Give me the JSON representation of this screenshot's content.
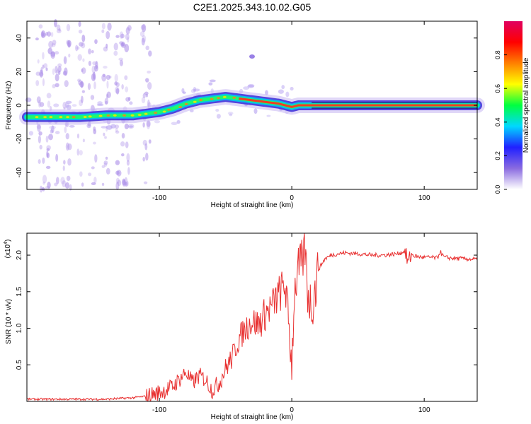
{
  "title": "C2E1.2025.343.10.02.G05",
  "chart_data": [
    {
      "type": "heatmap",
      "name": "spectrogram",
      "xlabel": "Height of straight line (km)",
      "ylabel": "Frequency (Hz)",
      "xlim": [
        -200,
        140
      ],
      "ylim": [
        -50,
        50
      ],
      "xticks": [
        -100,
        0,
        100
      ],
      "xtick_labels": [
        "-100",
        "0",
        "100"
      ],
      "yticks": [
        -40,
        -20,
        0,
        20,
        40
      ],
      "ytick_labels": [
        "-40",
        "-20",
        "0",
        "20",
        "40"
      ],
      "ridge": {
        "x": [
          -200,
          -180,
          -160,
          -140,
          -120,
          -110,
          -100,
          -90,
          -80,
          -70,
          -60,
          -50,
          -40,
          -30,
          -20,
          -10,
          -5,
          0,
          5,
          10,
          15,
          20,
          140
        ],
        "y": [
          -7,
          -7,
          -7,
          -6,
          -6,
          -5,
          -4,
          -2,
          1,
          3,
          4,
          5,
          4,
          3,
          2,
          1,
          0,
          -1,
          0,
          0,
          0,
          0,
          0
        ]
      },
      "blob": {
        "x": -30,
        "y": 29
      },
      "colorbar": {
        "label": "Normalized spectral amplitude",
        "ticks": [
          0.0,
          0.2,
          0.4,
          0.6,
          0.8
        ],
        "tick_labels": [
          "0.0",
          "0.2",
          "0.4",
          "0.6",
          "0.8"
        ],
        "range": [
          0,
          1
        ],
        "colors": [
          "#ffffff",
          "#8a6be0",
          "#2020ff",
          "#00d8ff",
          "#00ff40",
          "#ffff00",
          "#ff8000",
          "#ff0000",
          "#e00060"
        ]
      }
    },
    {
      "type": "line",
      "name": "snr",
      "xlabel": "Height of straight line (km)",
      "ylabel": "SNR (10 * v/v)",
      "multiplier": "(x10",
      "multiplier_exp": "4",
      "multiplier_close": ")",
      "xlim": [
        -200,
        140
      ],
      "ylim": [
        0,
        2.3
      ],
      "xticks": [
        -100,
        0,
        100
      ],
      "xtick_labels": [
        "-100",
        "0",
        "100"
      ],
      "yticks": [
        0.5,
        1.0,
        1.5,
        2.0
      ],
      "ytick_labels": [
        "0.5",
        "1.0",
        "1.5",
        "2.0"
      ],
      "line_color": "#e83030",
      "series": [
        {
          "name": "SNR",
          "x": [
            -200,
            -180,
            -160,
            -140,
            -130,
            -120,
            -110,
            -100,
            -90,
            -85,
            -80,
            -75,
            -70,
            -65,
            -60,
            -55,
            -50,
            -45,
            -40,
            -35,
            -30,
            -25,
            -20,
            -15,
            -10,
            -5,
            -2,
            0,
            2,
            5,
            8,
            10,
            12,
            15,
            18,
            20,
            25,
            30,
            35,
            40,
            50,
            60,
            70,
            80,
            85,
            88,
            90,
            95,
            100,
            105,
            110,
            112,
            115,
            120,
            130,
            140
          ],
          "y": [
            0.03,
            0.03,
            0.03,
            0.03,
            0.04,
            0.05,
            0.07,
            0.12,
            0.2,
            0.3,
            0.4,
            0.25,
            0.35,
            0.3,
            0.15,
            0.25,
            0.45,
            0.6,
            0.85,
            1.0,
            1.1,
            1.05,
            1.2,
            1.3,
            1.45,
            1.6,
            1.0,
            0.5,
            1.5,
            1.8,
            1.9,
            2.1,
            1.5,
            1.3,
            1.55,
            1.8,
            1.95,
            2.0,
            2.02,
            2.03,
            2.02,
            2.0,
            2.0,
            2.02,
            2.05,
            1.9,
            2.0,
            1.98,
            1.97,
            1.97,
            1.96,
            2.05,
            1.97,
            1.96,
            1.95,
            1.94
          ]
        }
      ]
    }
  ]
}
